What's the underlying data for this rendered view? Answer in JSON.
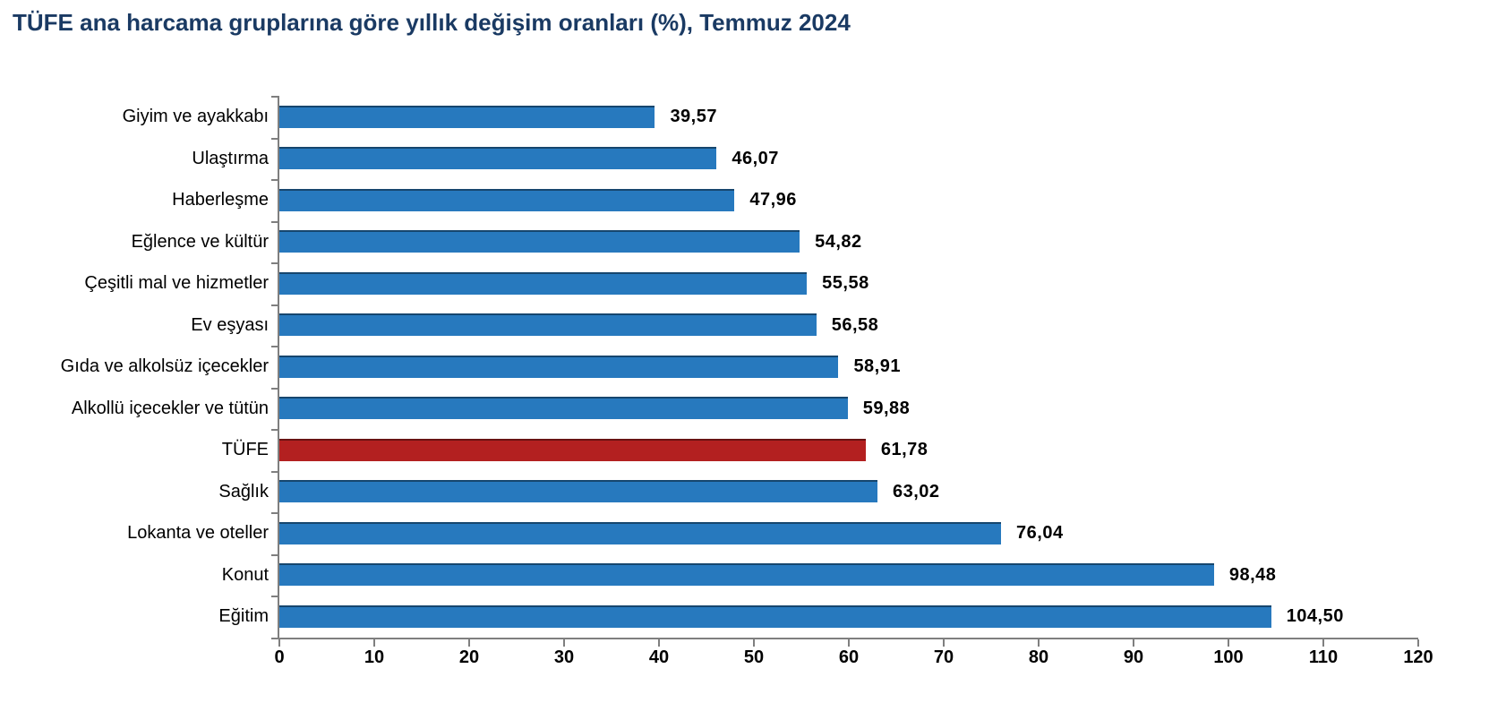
{
  "title": "TÜFE ana harcama gruplarına göre yıllık değişim oranları (%), Temmuz 2024",
  "chart_data": {
    "type": "bar",
    "orientation": "horizontal",
    "title": "TÜFE ana harcama gruplarına göre yıllık değişim oranları (%), Temmuz 2024",
    "xlabel": "",
    "ylabel": "",
    "categories": [
      "Giyim ve ayakkabı",
      "Ulaştırma",
      "Haberleşme",
      "Eğlence ve kültür",
      "Çeşitli mal ve hizmetler",
      "Ev eşyası",
      "Gıda ve alkolsüz içecekler",
      "Alkollü içecekler ve tütün",
      "TÜFE",
      "Sağlık",
      "Lokanta ve oteller",
      "Konut",
      "Eğitim"
    ],
    "values": [
      39.57,
      46.07,
      47.96,
      54.82,
      55.58,
      56.58,
      58.91,
      59.88,
      61.78,
      63.02,
      76.04,
      98.48,
      104.5
    ],
    "value_labels": [
      "39,57",
      "46,07",
      "47,96",
      "54,82",
      "55,58",
      "56,58",
      "58,91",
      "59,88",
      "61,78",
      "63,02",
      "76,04",
      "98,48",
      "104,50"
    ],
    "highlight_category": "TÜFE",
    "highlight_index": 8,
    "xlim": [
      0,
      120
    ],
    "x_ticks": [
      "0",
      "10",
      "20",
      "30",
      "40",
      "50",
      "60",
      "70",
      "80",
      "90",
      "100",
      "110",
      "120"
    ],
    "grid": false,
    "legend": "none",
    "colors": {
      "bar": "#2779BE",
      "highlight_bar": "#B32020",
      "axis": "#7f7f7f",
      "text": "#000000",
      "title": "#1A3A63"
    }
  }
}
